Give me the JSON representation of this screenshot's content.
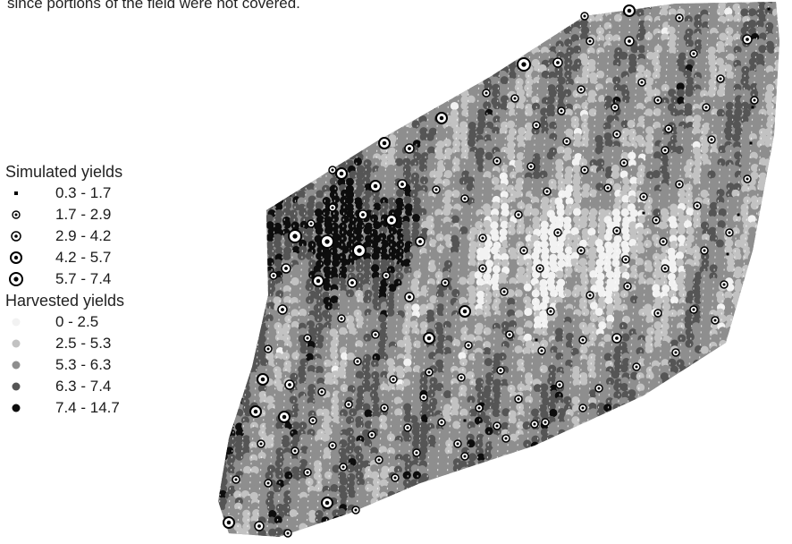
{
  "caption": "since portions of the field were not covered.",
  "legend": {
    "simulated": {
      "title": "Simulated yields",
      "items": [
        {
          "label": "0.3 - 1.7",
          "symbol": "small-square"
        },
        {
          "label": "1.7 - 2.9",
          "symbol": "ring-dot-small"
        },
        {
          "label": "2.9 - 4.2",
          "symbol": "ring-dot-medium"
        },
        {
          "label": "4.2 - 5.7",
          "symbol": "ring-dot-large"
        },
        {
          "label": "5.7 - 7.4",
          "symbol": "ring-dot-xlarge"
        }
      ]
    },
    "harvested": {
      "title": "Harvested yields",
      "items": [
        {
          "label": "0 - 2.5",
          "color": "#f2f2f2"
        },
        {
          "label": "2.5 - 5.3",
          "color": "#c2c2c2"
        },
        {
          "label": "5.3 - 6.3",
          "color": "#8e8e8e"
        },
        {
          "label": "6.3 - 7.4",
          "color": "#555555"
        },
        {
          "label": "7.4 - 14.7",
          "color": "#0d0d0d"
        }
      ]
    }
  }
}
